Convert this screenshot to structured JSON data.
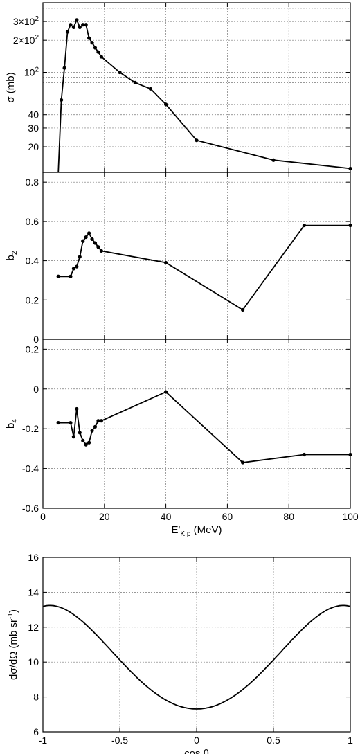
{
  "chart_data": [
    {
      "type": "line",
      "ylabel": "σ (mb)",
      "xlabel": "",
      "yscale": "log",
      "xlim": [
        0,
        100
      ],
      "ylim": [
        11.5,
        450
      ],
      "grid": true,
      "y_ticks": [
        {
          "value": 20,
          "label": "20"
        },
        {
          "value": 30,
          "label": "30"
        },
        {
          "value": 40,
          "label": "40"
        },
        {
          "value": 100,
          "label": "10",
          "exp": "2"
        },
        {
          "value": 200,
          "label": "2×10",
          "exp": "2"
        },
        {
          "value": 300,
          "label": "3×10",
          "exp": "2"
        }
      ],
      "y_grid": [
        20,
        30,
        40,
        50,
        60,
        70,
        80,
        90,
        100,
        200,
        300,
        400
      ],
      "x_ticks": [
        0,
        20,
        40,
        60,
        80,
        100
      ],
      "x_tick_labels": false,
      "markers": true,
      "series": [
        {
          "x": [
            5,
            6,
            7,
            8,
            9,
            10,
            11,
            12,
            13,
            14,
            15,
            16,
            17,
            18,
            19,
            25,
            30,
            35,
            40,
            50,
            75,
            100
          ],
          "y": [
            11.5,
            55,
            110,
            240,
            280,
            265,
            310,
            265,
            280,
            280,
            210,
            190,
            170,
            155,
            140,
            100,
            80,
            70,
            50,
            23,
            15,
            12.5
          ],
          "x_markers_skip": [
            5
          ]
        }
      ]
    },
    {
      "type": "line",
      "ylabel": "b",
      "ylabel_sub": "2",
      "xlabel": "",
      "xlim": [
        0,
        100
      ],
      "ylim": [
        0,
        0.85
      ],
      "grid": true,
      "y_ticks": [
        {
          "value": 0,
          "label": "0"
        },
        {
          "value": 0.2,
          "label": "0.2"
        },
        {
          "value": 0.4,
          "label": "0.4"
        },
        {
          "value": 0.6,
          "label": "0.6"
        },
        {
          "value": 0.8,
          "label": "0.8"
        }
      ],
      "x_ticks": [
        0,
        20,
        40,
        60,
        80,
        100
      ],
      "x_tick_labels": false,
      "markers": true,
      "series": [
        {
          "x": [
            5,
            9,
            10,
            11,
            12,
            13,
            14,
            15,
            16,
            17,
            18,
            19,
            40,
            65,
            85,
            100
          ],
          "y": [
            0.32,
            0.32,
            0.36,
            0.37,
            0.42,
            0.5,
            0.52,
            0.54,
            0.51,
            0.49,
            0.47,
            0.45,
            0.39,
            0.15,
            0.58,
            0.58
          ]
        }
      ]
    },
    {
      "type": "line",
      "ylabel": "b",
      "ylabel_sub": "4",
      "xlabel": "E'",
      "xlabel_sub": "K,p",
      "xlabel_unit": " (MeV)",
      "xlim": [
        0,
        100
      ],
      "ylim": [
        -0.6,
        0.25
      ],
      "grid": true,
      "y_ticks": [
        {
          "value": -0.6,
          "label": "-0.6"
        },
        {
          "value": -0.4,
          "label": "-0.4"
        },
        {
          "value": -0.2,
          "label": "-0.2"
        },
        {
          "value": 0,
          "label": "0"
        },
        {
          "value": 0.2,
          "label": "0.2"
        }
      ],
      "x_ticks": [
        0,
        20,
        40,
        60,
        80,
        100
      ],
      "x_tick_labels": true,
      "markers": true,
      "series": [
        {
          "x": [
            5,
            9,
            10,
            11,
            12,
            13,
            14,
            15,
            16,
            17,
            18,
            19,
            40,
            65,
            85,
            100
          ],
          "y": [
            -0.17,
            -0.17,
            -0.24,
            -0.1,
            -0.22,
            -0.26,
            -0.28,
            -0.27,
            -0.21,
            -0.19,
            -0.16,
            -0.16,
            -0.015,
            -0.37,
            -0.33,
            -0.33
          ]
        }
      ]
    },
    {
      "type": "line",
      "ylabel": "dσ/dΩ (mb sr",
      "ylabel_sup": "-1",
      "ylabel_end": ")",
      "xlabel": "cos θ",
      "xlim": [
        -1,
        1
      ],
      "ylim": [
        6,
        16
      ],
      "grid": true,
      "y_ticks": [
        {
          "value": 6,
          "label": "6"
        },
        {
          "value": 8,
          "label": "8"
        },
        {
          "value": 10,
          "label": "10"
        },
        {
          "value": 12,
          "label": "12"
        },
        {
          "value": 14,
          "label": "14"
        },
        {
          "value": 16,
          "label": "16"
        }
      ],
      "x_ticks": [
        {
          "value": -1,
          "label": "-1"
        },
        {
          "value": -0.5,
          "label": "-0.5"
        },
        {
          "value": 0,
          "label": "0"
        },
        {
          "value": 0.5,
          "label": "0.5"
        },
        {
          "value": 1,
          "label": "1"
        }
      ],
      "x_tick_labels": true,
      "markers": false,
      "curve": {
        "form": "sigma/(4pi) * (1 + b2*P2(x) + b4*P4(x))",
        "sigma_mb": 128.5,
        "b2": 0.45,
        "b4": -0.16
      }
    }
  ]
}
